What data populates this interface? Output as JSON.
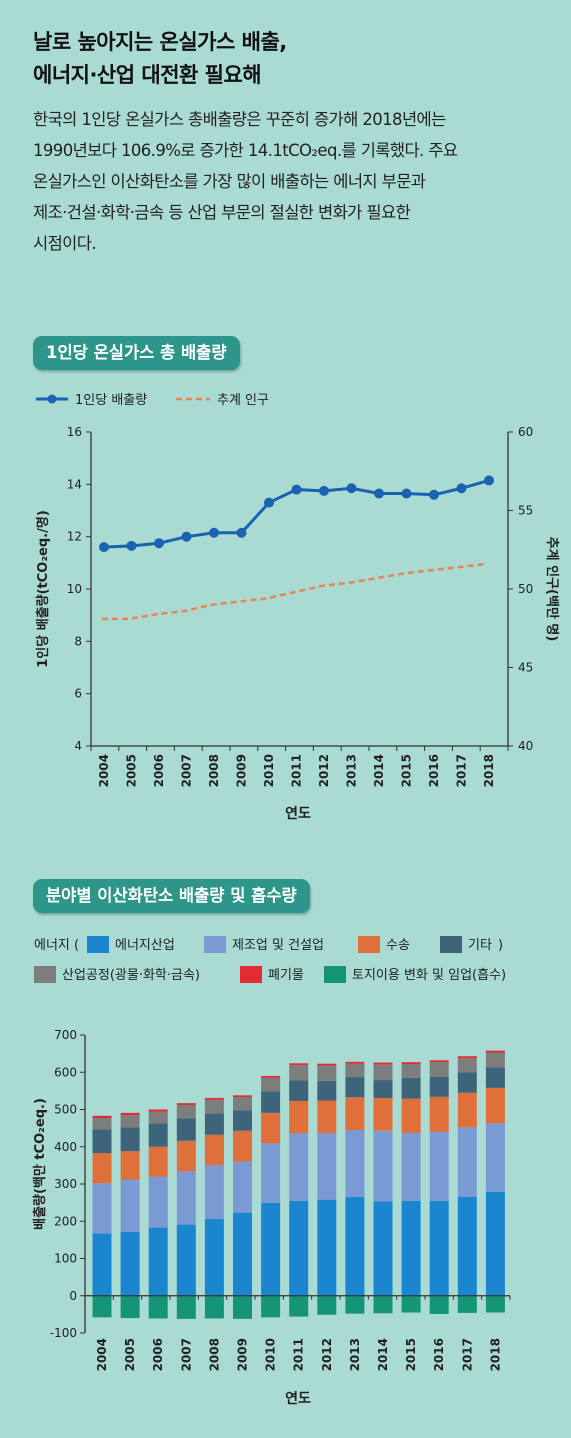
{
  "header": {
    "title_line1": "날로 높아지는 온실가스 배출,",
    "title_line2": "에너지·산업 대전환 필요해",
    "intro_lines": [
      "한국의 1인당 온실가스 총배출량은 꾸준히 증가해 2018년에는",
      "1990년보다 106.9%로 증가한 14.1tCO₂eq.를 기록했다. 주요",
      "온실가스인 이산화탄소를 가장 많이 배출하는 에너지 부문과",
      "제조·건설·화학·금속 등 산업 부문의 절실한 변화가 필요한",
      "시점이다."
    ]
  },
  "chart_data": [
    {
      "type": "line",
      "title": "1인당 온실가스 총 배출량",
      "xlabel": "연도",
      "ylabel": "1인당 배출량(tCO₂eq./명)",
      "y2label": "추계 인구(백만 명)",
      "x": [
        2004,
        2005,
        2006,
        2007,
        2008,
        2009,
        2010,
        2011,
        2012,
        2013,
        2014,
        2015,
        2016,
        2017,
        2018
      ],
      "ylim": [
        4,
        16
      ],
      "yticks": [
        4,
        6,
        8,
        10,
        12,
        14,
        16
      ],
      "y2lim": [
        40,
        60
      ],
      "y2ticks": [
        40,
        45,
        50,
        55,
        60
      ],
      "legend_placement": "top-left",
      "series": [
        {
          "name": "1인당 배출량",
          "axis": "left",
          "style": "solid-marker",
          "color": "#1b63b0",
          "values": [
            11.6,
            11.65,
            11.75,
            12.0,
            12.15,
            12.15,
            13.3,
            13.8,
            13.75,
            13.85,
            13.65,
            13.65,
            13.6,
            13.85,
            14.15
          ]
        },
        {
          "name": "추계 인구",
          "axis": "right",
          "style": "dashed",
          "color": "#e8855a",
          "values": [
            48.1,
            48.1,
            48.4,
            48.6,
            49.0,
            49.2,
            49.4,
            49.8,
            50.2,
            50.4,
            50.7,
            51.0,
            51.2,
            51.4,
            51.6
          ]
        }
      ]
    },
    {
      "type": "bar",
      "stacked": true,
      "title": "분야별 이산화탄소 배출량 및 흡수량",
      "xlabel": "연도",
      "ylabel": "배출량(백만 tCO₂eq.)",
      "categories": [
        2004,
        2005,
        2006,
        2007,
        2008,
        2009,
        2010,
        2011,
        2012,
        2013,
        2014,
        2015,
        2016,
        2017,
        2018
      ],
      "ylim": [
        -100,
        700
      ],
      "yticks": [
        -100,
        0,
        100,
        200,
        300,
        400,
        500,
        600,
        700
      ],
      "legend_placement": "top",
      "legend_group_open": "에너지 (",
      "legend_group_close": ")",
      "series": [
        {
          "name": "에너지산업",
          "color": "#1a86cf",
          "values": [
            167,
            172,
            183,
            191,
            206,
            223,
            249,
            255,
            258,
            265,
            253,
            255,
            255,
            265,
            279
          ]
        },
        {
          "name": "제조업 및 건설업",
          "color": "#7b9ad4",
          "values": [
            135,
            140,
            137,
            143,
            145,
            137,
            160,
            181,
            179,
            180,
            190,
            182,
            185,
            187,
            184
          ]
        },
        {
          "name": "수송",
          "color": "#e0703a",
          "values": [
            81,
            76,
            80,
            82,
            81,
            83,
            82,
            87,
            87,
            88,
            88,
            92,
            94,
            93,
            95
          ]
        },
        {
          "name": "기타",
          "color": "#3d6479",
          "values": [
            64,
            64,
            63,
            60,
            57,
            55,
            58,
            55,
            53,
            54,
            48,
            56,
            54,
            55,
            55
          ]
        },
        {
          "name": "산업공정(광물·화학·금속)",
          "color": "#7d7d7d",
          "values": [
            30,
            33,
            31,
            36,
            37,
            35,
            36,
            41,
            41,
            36,
            42,
            37,
            39,
            38,
            40
          ]
        },
        {
          "name": "폐기물",
          "color": "#e12b35",
          "values": [
            6,
            6,
            6,
            5,
            5,
            5,
            5,
            5,
            5,
            5,
            5,
            5,
            5,
            5,
            5
          ]
        },
        {
          "name": "토지이용 변화 및 임업(흡수)",
          "color": "#169477",
          "values": [
            -58,
            -60,
            -61,
            -62,
            -61,
            -62,
            -58,
            -56,
            -51,
            -48,
            -47,
            -45,
            -49,
            -46,
            -45
          ]
        }
      ]
    }
  ]
}
